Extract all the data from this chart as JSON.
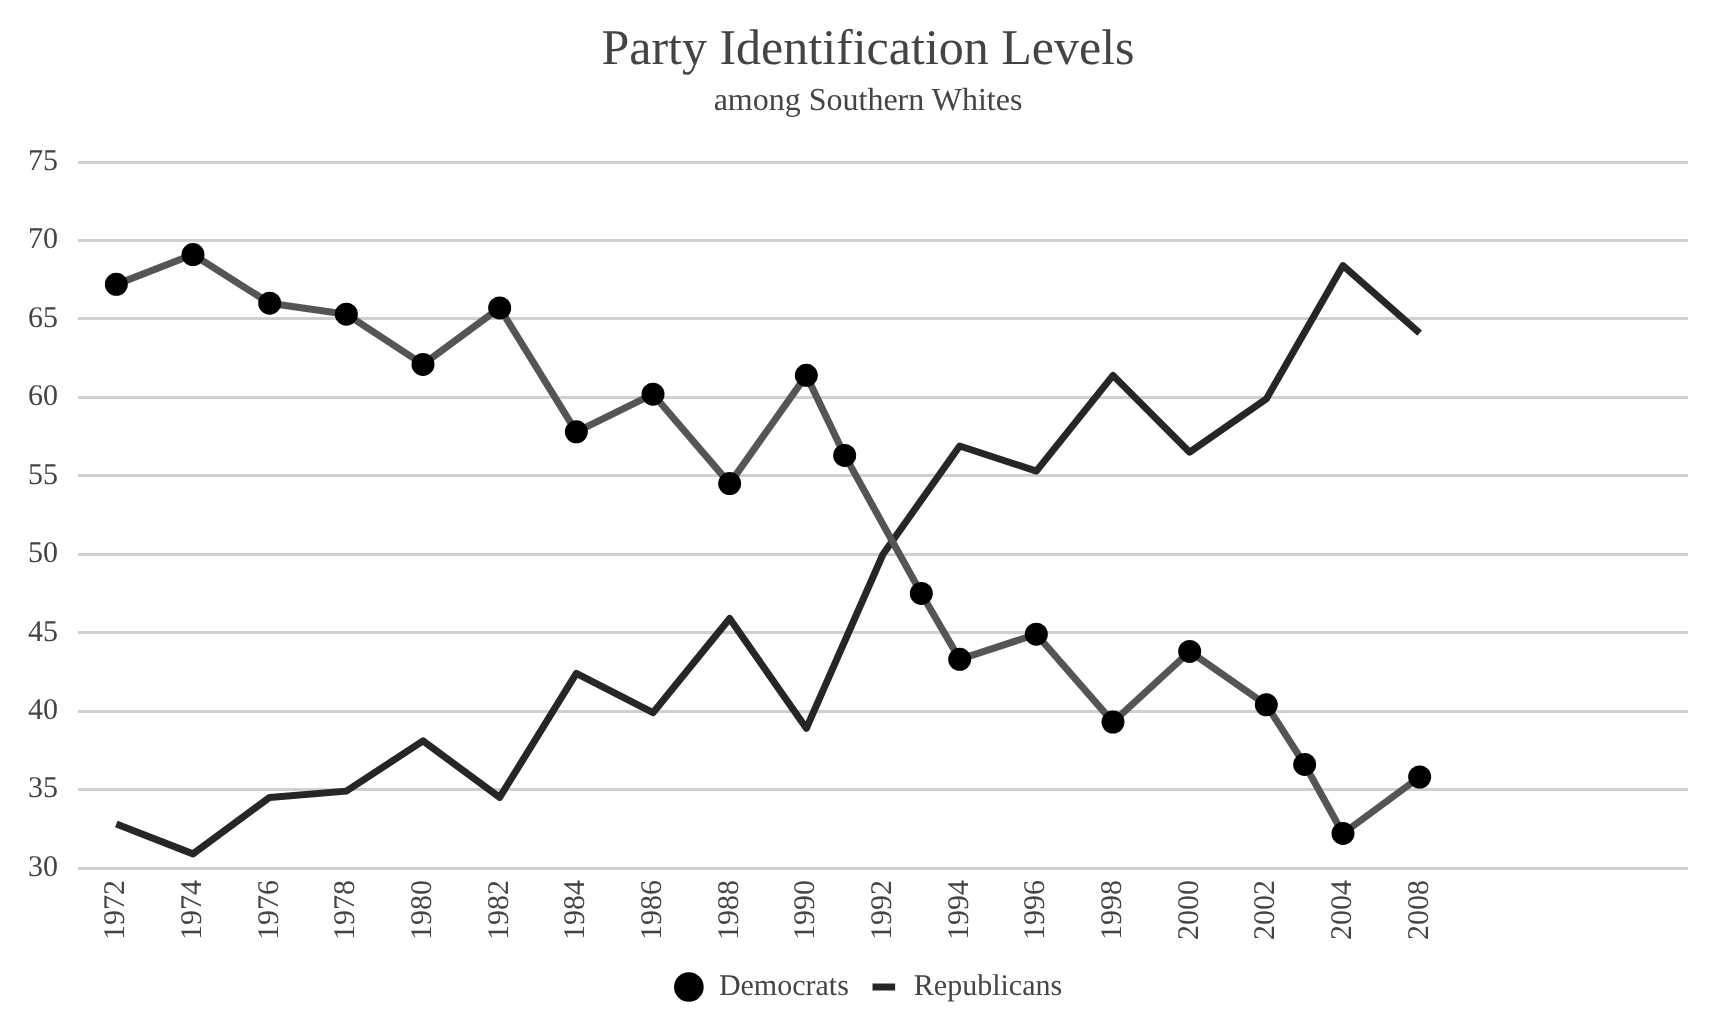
{
  "chart_data": {
    "type": "line",
    "title": "Party Identification Levels",
    "subtitle": "among Southern Whites",
    "categories": [
      null,
      "1972",
      null,
      "1974",
      null,
      "1976",
      null,
      "1978",
      null,
      "1980",
      null,
      "1982",
      null,
      "1984",
      null,
      "1986",
      null,
      "1988",
      null,
      "1990",
      null,
      "1992",
      null,
      "1994",
      null,
      "1996",
      null,
      "1998",
      null,
      "2000",
      null,
      "2002",
      null,
      "2004",
      null,
      "2008",
      null,
      null,
      null,
      null,
      null,
      null,
      null
    ],
    "series": [
      {
        "name": "Democrats",
        "color": "#555555",
        "marker": "circle",
        "values": [
          null,
          67.2,
          null,
          69.1,
          null,
          66.0,
          null,
          65.3,
          null,
          62.1,
          null,
          65.7,
          null,
          57.8,
          null,
          60.2,
          null,
          54.5,
          null,
          61.4,
          56.3,
          null,
          47.5,
          43.3,
          null,
          44.9,
          null,
          39.3,
          null,
          43.8,
          null,
          40.4,
          36.6,
          32.2,
          null,
          35.8,
          null,
          null,
          null,
          null,
          null,
          null,
          null
        ]
      },
      {
        "name": "Republicans",
        "color": "#262626",
        "marker": "none",
        "values": [
          null,
          32.8,
          null,
          30.9,
          null,
          34.5,
          null,
          34.9,
          null,
          38.1,
          null,
          34.5,
          null,
          42.4,
          null,
          39.9,
          null,
          45.9,
          null,
          38.9,
          null,
          50.0,
          null,
          56.9,
          null,
          55.3,
          null,
          61.4,
          null,
          56.5,
          null,
          59.9,
          null,
          68.4,
          null,
          64.1,
          null,
          null,
          null,
          null,
          null,
          null,
          null
        ]
      }
    ],
    "ylim": [
      30,
      75
    ],
    "yticks": [
      30,
      35,
      40,
      45,
      50,
      55,
      60,
      65,
      70,
      75
    ],
    "grid": "y",
    "legend": "bottom",
    "line_style": "solid"
  }
}
